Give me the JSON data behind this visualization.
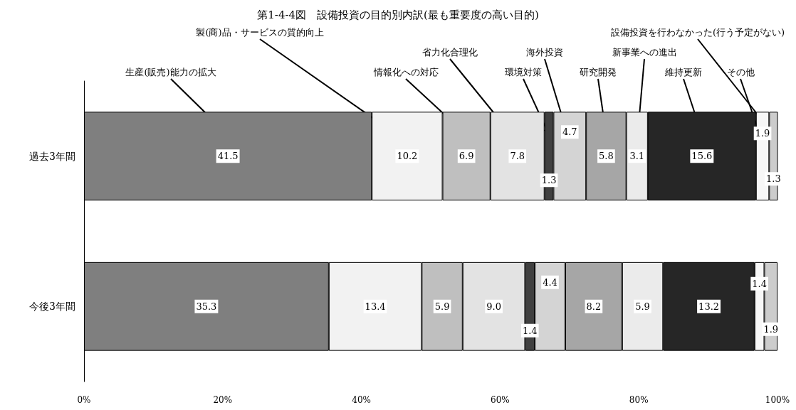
{
  "chart_data": {
    "type": "bar",
    "title": "第1-4-4図　設備投資の目的別内訳(最も重要度の高い目的)",
    "orientation": "horizontal",
    "stacked": true,
    "categories": [
      "過去3年間",
      "今後3年間"
    ],
    "series": [
      {
        "name": "生産(販売)能力の拡大",
        "color": "#7f7f7f",
        "values": [
          41.5,
          35.3
        ],
        "value_labels": [
          "41.5",
          "35.3"
        ]
      },
      {
        "name": "製(商)品・サービスの質的向上",
        "color": "#f2f2f2",
        "values": [
          10.2,
          13.4
        ],
        "value_labels": [
          "10.2",
          "13.4"
        ]
      },
      {
        "name": "情報化への対応",
        "color": "#bfbfbf",
        "values": [
          6.9,
          5.9
        ],
        "value_labels": [
          "6.9",
          "5.9"
        ]
      },
      {
        "name": "省力化合理化",
        "color": "#e3e3e3",
        "values": [
          7.8,
          9.0
        ],
        "value_labels": [
          "7.8",
          "9.0"
        ]
      },
      {
        "name": "環境対策",
        "color": "#404040",
        "values": [
          1.3,
          1.4
        ],
        "value_labels": [
          "1.3",
          "1.4"
        ]
      },
      {
        "name": "海外投資",
        "color": "#d4d4d4",
        "values": [
          4.7,
          4.4
        ],
        "value_labels": [
          "4.7",
          "4.4"
        ]
      },
      {
        "name": "研究開発",
        "color": "#a6a6a6",
        "values": [
          5.8,
          8.2
        ],
        "value_labels": [
          "5.8",
          "8.2"
        ]
      },
      {
        "name": "新事業への進出",
        "color": "#ebebeb",
        "values": [
          3.1,
          5.9
        ],
        "value_labels": [
          "3.1",
          "5.9"
        ]
      },
      {
        "name": "維持更新",
        "color": "#262626",
        "values": [
          15.6,
          13.2
        ],
        "value_labels": [
          "15.6",
          "13.2"
        ]
      },
      {
        "name": "その他",
        "color": "#f7f7f7",
        "values": [
          1.9,
          1.4
        ],
        "value_labels": [
          "1.9",
          "1.4"
        ]
      },
      {
        "name": "設備投資を行わなかった(行う予定がない)",
        "color": "#cccccc",
        "values": [
          1.3,
          1.9
        ],
        "value_labels": [
          "1.3",
          "1.9"
        ]
      }
    ],
    "xlim": [
      0,
      100
    ],
    "xticks": [
      {
        "value": 0,
        "label": "0%"
      },
      {
        "value": 20,
        "label": "20%"
      },
      {
        "value": 40,
        "label": "40%"
      },
      {
        "value": 60,
        "label": "60%"
      },
      {
        "value": 80,
        "label": "80%"
      },
      {
        "value": 100,
        "label": "100%"
      }
    ],
    "grid": false,
    "legend": false
  }
}
